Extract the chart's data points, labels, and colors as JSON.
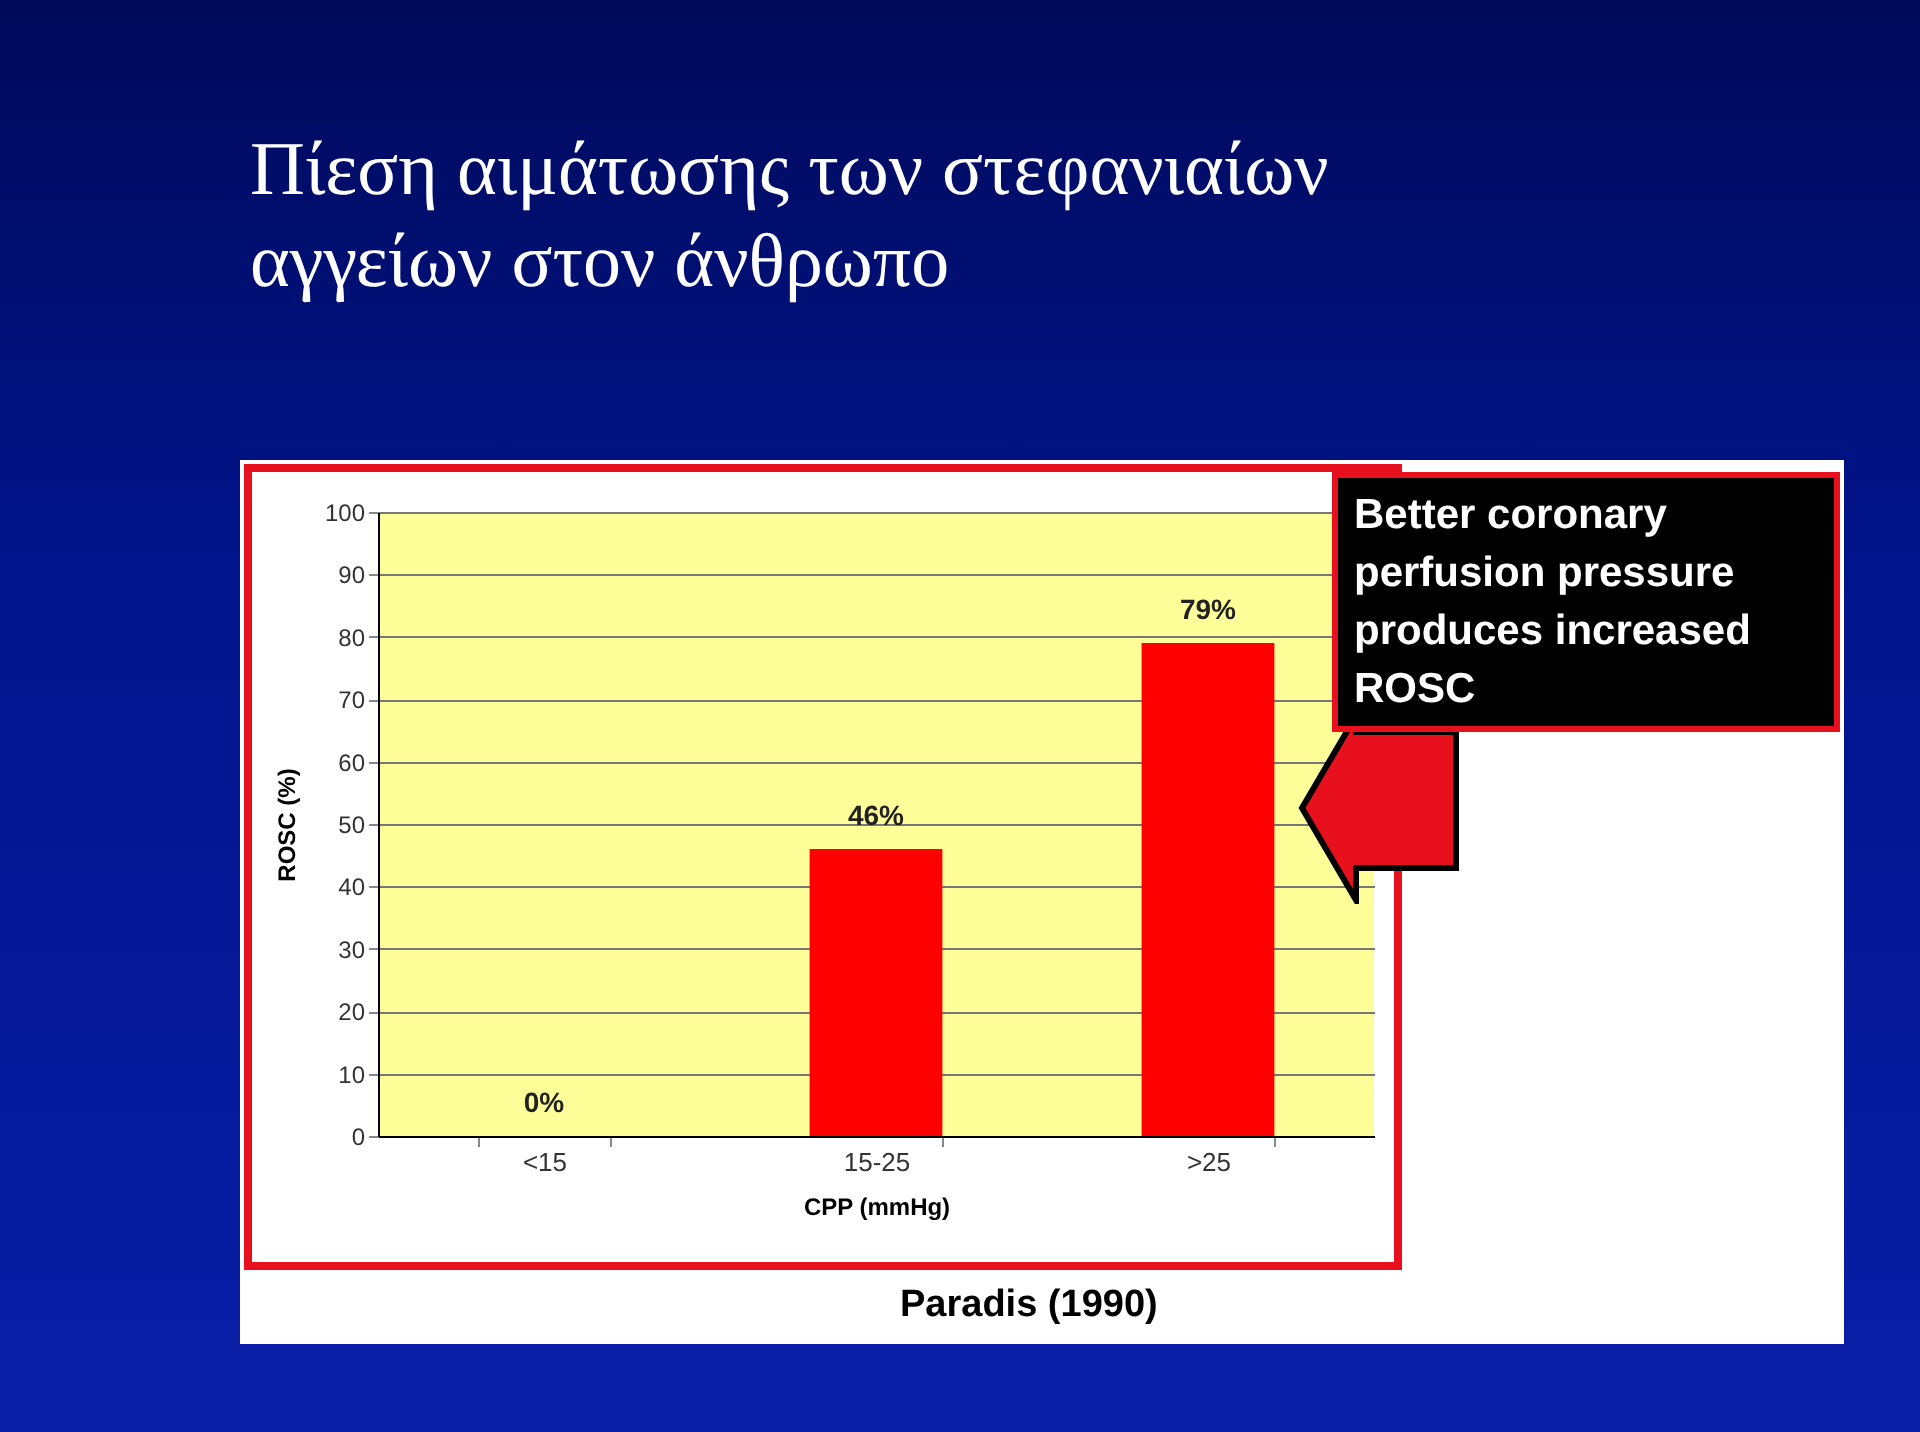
{
  "chart_data": {
    "type": "bar",
    "title": "Πίεση αιμάτωσης των στεφανιαίων αγγείων στον άνθρωπο",
    "categories": [
      "<15",
      "15-25",
      ">25"
    ],
    "values": [
      0,
      46,
      79
    ],
    "value_labels": [
      "0%",
      "46%",
      "79%"
    ],
    "color": "#ff0000",
    "xlabel": "CPP (mmHg)",
    "ylabel": "ROSC (%)",
    "ylim": [
      0,
      100
    ],
    "yticks": [
      0,
      10,
      20,
      30,
      40,
      50,
      60,
      70,
      80,
      90,
      100
    ],
    "grid": "y",
    "annotations": [
      "Better coronary perfusion pressure produces increased ROSC",
      "Paradis (1990)"
    ]
  }
}
